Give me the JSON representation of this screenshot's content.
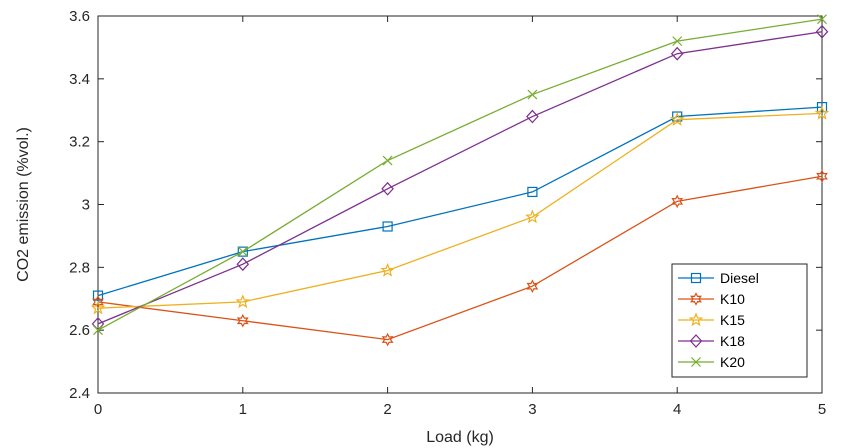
{
  "chart_data": {
    "type": "line",
    "title": "",
    "xlabel": "Load (kg)",
    "ylabel": "CO2 emission (%vol.)",
    "x": [
      0,
      1,
      2,
      3,
      4,
      5
    ],
    "xlim": [
      0,
      5
    ],
    "ylim": [
      2.4,
      3.6
    ],
    "xticks": [
      "0",
      "1",
      "2",
      "3",
      "4",
      "5"
    ],
    "yticks": [
      "2.4",
      "2.6",
      "2.8",
      "3",
      "3.2",
      "3.4",
      "3.6"
    ],
    "grid": false,
    "legend_position": "bottom-right",
    "series": [
      {
        "name": "Diesel",
        "color": "#0072BD",
        "marker": "square",
        "values": [
          2.71,
          2.85,
          2.93,
          3.04,
          3.28,
          3.31
        ]
      },
      {
        "name": "K10",
        "color": "#D95319",
        "marker": "hexagram",
        "values": [
          2.69,
          2.63,
          2.57,
          2.74,
          3.01,
          3.09
        ]
      },
      {
        "name": "K15",
        "color": "#EDB120",
        "marker": "pentagram",
        "values": [
          2.67,
          2.69,
          2.79,
          2.96,
          3.27,
          3.29
        ]
      },
      {
        "name": "K18",
        "color": "#7E2F8E",
        "marker": "diamond",
        "values": [
          2.62,
          2.81,
          3.05,
          3.28,
          3.48,
          3.55
        ]
      },
      {
        "name": "K20",
        "color": "#77AC30",
        "marker": "x",
        "values": [
          2.6,
          2.85,
          3.14,
          3.35,
          3.52,
          3.59
        ]
      }
    ]
  }
}
